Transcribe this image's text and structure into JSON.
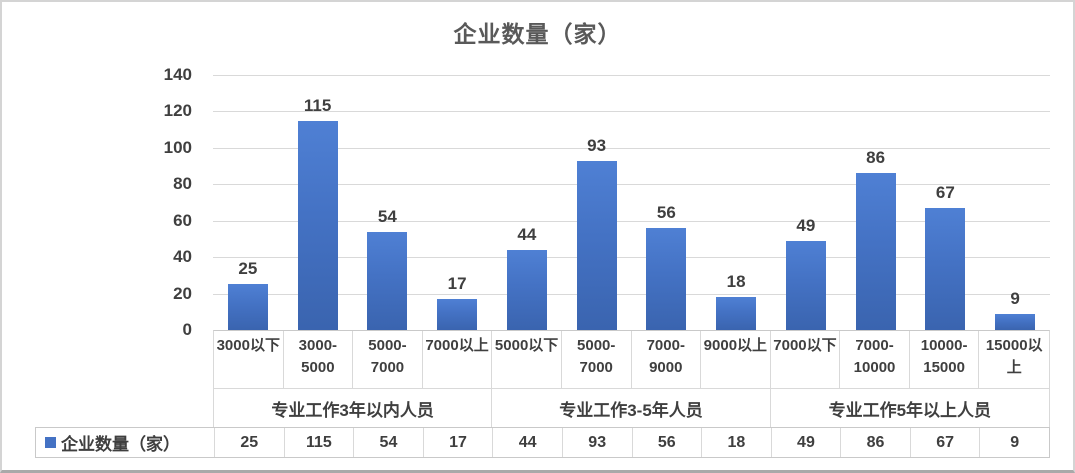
{
  "chart_data": {
    "type": "bar",
    "title": "企业数量（家）",
    "legend_label": "企业数量（家）",
    "ylim": [
      0,
      140
    ],
    "ytick_step": 20,
    "ytick_labels": [
      "0",
      "20",
      "40",
      "60",
      "80",
      "100",
      "120",
      "140"
    ],
    "grid": true,
    "legend_position": "bottom-table",
    "groups": [
      {
        "label": "专业工作3年以内人员",
        "categories": [
          "3000以下",
          "3000-5000",
          "5000-7000",
          "7000以上"
        ],
        "values": [
          25,
          115,
          54,
          17
        ]
      },
      {
        "label": "专业工作3-5年人员",
        "categories": [
          "5000以下",
          "5000-7000",
          "7000-9000",
          "9000以上"
        ],
        "values": [
          44,
          93,
          56,
          18
        ]
      },
      {
        "label": "专业工作5年以上人员",
        "categories": [
          "7000以下",
          "7000-10000",
          "10000-15000",
          "15000以上"
        ],
        "values": [
          49,
          86,
          67,
          9
        ]
      }
    ],
    "series": [
      {
        "name": "企业数量（家）",
        "values": [
          25,
          115,
          54,
          17,
          44,
          93,
          56,
          18,
          49,
          86,
          67,
          9
        ]
      }
    ],
    "colors": {
      "bar_fill": "#4472c4",
      "bar_fill_light": "#4f80d4",
      "bar_fill_dark": "#3a64af",
      "gridline": "#d9d9d9",
      "text": "#404040",
      "title_text": "#595959",
      "table_border": "#c9c9c9"
    }
  }
}
